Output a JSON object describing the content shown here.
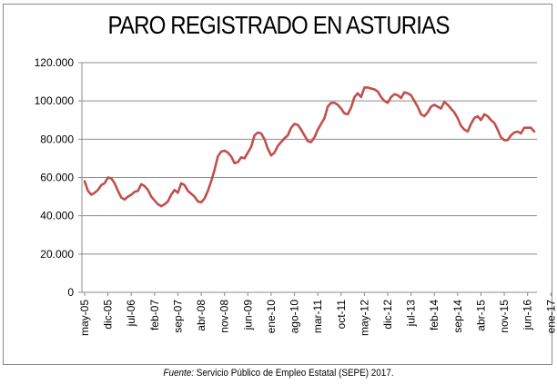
{
  "chart_data": {
    "type": "line",
    "title": "PARO REGISTRADO EN ASTURIAS",
    "xlabel": "",
    "ylabel": "",
    "ylim": [
      0,
      120000
    ],
    "y_ticks": [
      {
        "value": 0,
        "label": "0"
      },
      {
        "value": 20000,
        "label": "20.000"
      },
      {
        "value": 40000,
        "label": "40.000"
      },
      {
        "value": 60000,
        "label": "60.000"
      },
      {
        "value": 80000,
        "label": "80.000"
      },
      {
        "value": 100000,
        "label": "100.000"
      },
      {
        "value": 120000,
        "label": "120.000"
      }
    ],
    "x_ticks": [
      {
        "index": 0,
        "label": "may-05"
      },
      {
        "index": 7,
        "label": "dic-05"
      },
      {
        "index": 14,
        "label": "jul-06"
      },
      {
        "index": 21,
        "label": "feb-07"
      },
      {
        "index": 28,
        "label": "sep-07"
      },
      {
        "index": 35,
        "label": "abr-08"
      },
      {
        "index": 42,
        "label": "nov-08"
      },
      {
        "index": 49,
        "label": "jun-09"
      },
      {
        "index": 56,
        "label": "ene-10"
      },
      {
        "index": 63,
        "label": "ago-10"
      },
      {
        "index": 70,
        "label": "mar-11"
      },
      {
        "index": 77,
        "label": "oct-11"
      },
      {
        "index": 84,
        "label": "may-12"
      },
      {
        "index": 91,
        "label": "dic-12"
      },
      {
        "index": 98,
        "label": "jul-13"
      },
      {
        "index": 105,
        "label": "feb-14"
      },
      {
        "index": 112,
        "label": "sep-14"
      },
      {
        "index": 119,
        "label": "abr-15"
      },
      {
        "index": 126,
        "label": "nov-15"
      },
      {
        "index": 133,
        "label": "jun-16"
      },
      {
        "index": 140,
        "label": "ene-17"
      }
    ],
    "series": [
      {
        "name": "Paro registrado",
        "color": "#c0504d",
        "start": "may-05",
        "values": [
          58000,
          53000,
          51000,
          52000,
          53500,
          56000,
          57000,
          60000,
          59500,
          57000,
          53000,
          49500,
          48500,
          50000,
          51000,
          52500,
          53000,
          56500,
          55500,
          53500,
          50000,
          48000,
          46000,
          45000,
          46000,
          47500,
          51000,
          53500,
          52000,
          57000,
          56000,
          53000,
          51500,
          50000,
          47500,
          47000,
          49000,
          53000,
          58000,
          64000,
          71000,
          73500,
          74000,
          73000,
          71000,
          67500,
          68000,
          70500,
          70000,
          73000,
          76000,
          82000,
          83500,
          83000,
          80000,
          75000,
          71500,
          73000,
          76500,
          78500,
          80500,
          82000,
          86000,
          88000,
          87500,
          85000,
          82000,
          79000,
          78500,
          81000,
          85000,
          88000,
          91000,
          97000,
          99000,
          99000,
          98000,
          96000,
          93500,
          93000,
          96500,
          102000,
          104000,
          102000,
          107000,
          107000,
          106500,
          106000,
          105000,
          102000,
          100000,
          99000,
          102000,
          103500,
          103000,
          101500,
          104500,
          104000,
          103000,
          100000,
          97000,
          93000,
          92000,
          94000,
          97000,
          98000,
          97000,
          96000,
          99500,
          98000,
          96000,
          94000,
          91000,
          87000,
          85000,
          84000,
          88000,
          91000,
          92000,
          90000,
          93000,
          92000,
          90000,
          88500,
          85000,
          81000,
          79500,
          79500,
          82000,
          83500,
          84000,
          83000,
          86000,
          86000,
          86000,
          84000
        ]
      }
    ]
  },
  "source": {
    "label": "Fuente:",
    "text": "Servicio Público de Empleo Estatal (SEPE) 2017."
  }
}
